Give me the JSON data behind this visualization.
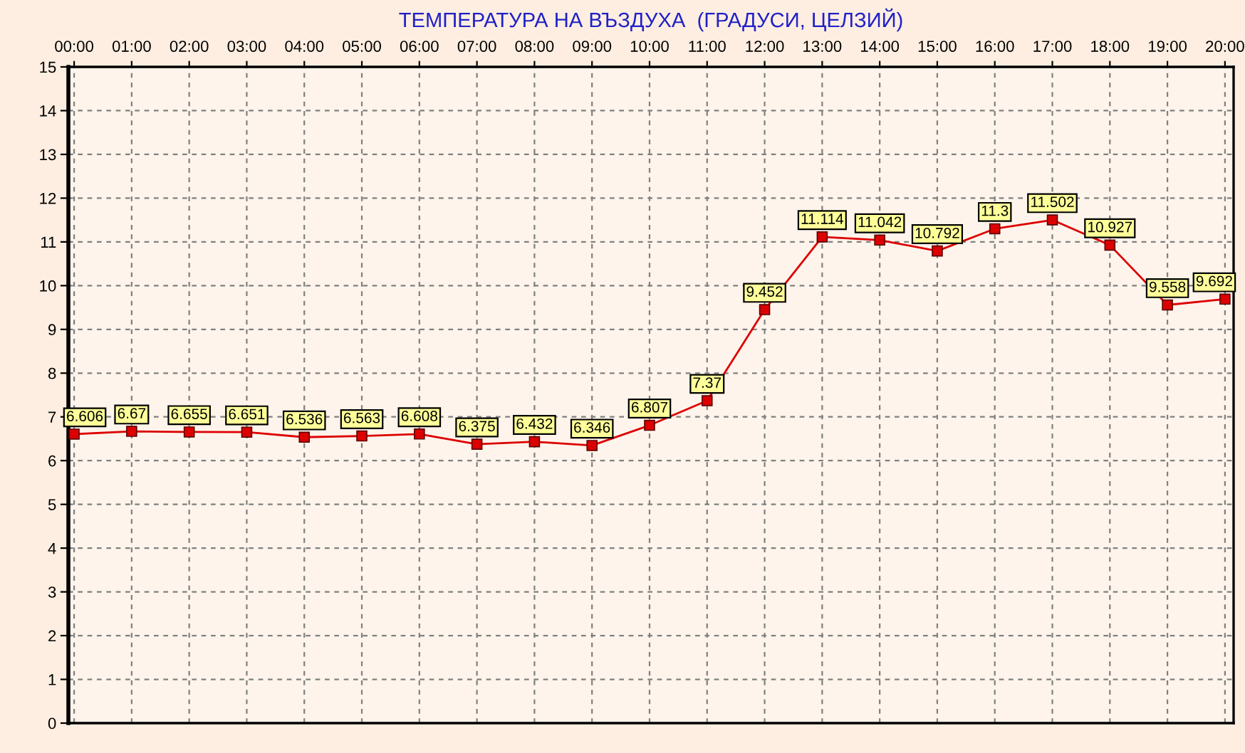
{
  "chart_data": {
    "type": "line",
    "title": "ТЕМПЕРАТУРА НА ВЪЗДУХА  (ГРАДУСИ, ЦЕЛЗИЙ)",
    "categories": [
      "00:00",
      "01:00",
      "02:00",
      "03:00",
      "04:00",
      "05:00",
      "06:00",
      "07:00",
      "08:00",
      "09:00",
      "10:00",
      "11:00",
      "12:00",
      "13:00",
      "14:00",
      "15:00",
      "16:00",
      "17:00",
      "18:00",
      "19:00",
      "20:00"
    ],
    "series": [
      {
        "color": "#dd0000",
        "values": [
          6.606,
          6.67,
          6.655,
          6.651,
          6.536,
          6.563,
          6.608,
          6.375,
          6.432,
          6.346,
          6.807,
          7.37,
          9.452,
          11.114,
          11.042,
          10.792,
          11.3,
          11.502,
          10.927,
          9.558,
          9.692
        ]
      }
    ],
    "ylim": [
      0,
      15
    ],
    "yticks": [
      0,
      1,
      2,
      3,
      4,
      5,
      6,
      7,
      8,
      9,
      10,
      11,
      12,
      13,
      14,
      15
    ],
    "grid": true,
    "marker": "square",
    "line_style": "solid",
    "data_labels": true
  }
}
